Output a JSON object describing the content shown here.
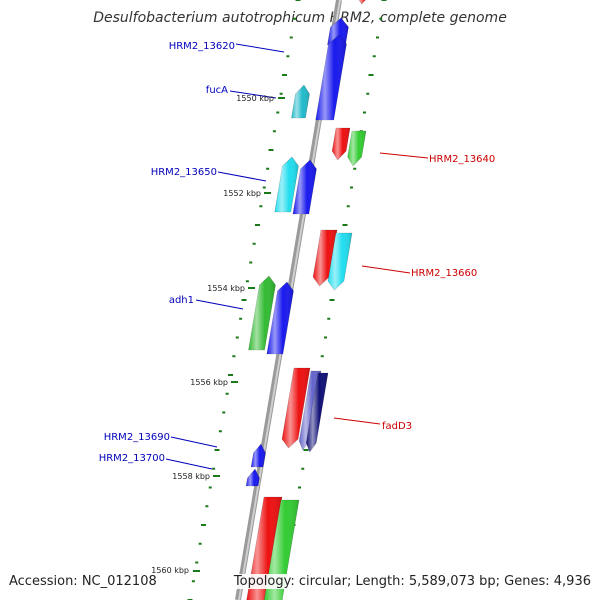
{
  "title": "Desulfobacterium autotrophicum HRM2, complete genome",
  "accession": "Accession: NC_012108",
  "topology": "Topology: circular; Length: 5,589,073 bp; Genes: 4,936",
  "colors": {
    "forward_label": "#0000bb",
    "reverse_label": "#cc0000",
    "tick": "#1a7a1a",
    "backbone": "#888888"
  },
  "ticks": [
    {
      "label": "1550 kbp"
    },
    {
      "label": "1552 kbp"
    },
    {
      "label": "1554 kbp"
    },
    {
      "label": "1556 kbp"
    },
    {
      "label": "1558 kbp"
    },
    {
      "label": "1560 kbp"
    }
  ],
  "gene_labels": [
    {
      "text": "HRM2_13620",
      "strand": "forward"
    },
    {
      "text": "fucA",
      "strand": "forward"
    },
    {
      "text": "HRM2_13640",
      "strand": "reverse"
    },
    {
      "text": "HRM2_13650",
      "strand": "forward"
    },
    {
      "text": "HRM2_13660",
      "strand": "reverse"
    },
    {
      "text": "adh1",
      "strand": "forward"
    },
    {
      "text": "fadD3",
      "strand": "reverse"
    },
    {
      "text": "HRM2_13690",
      "strand": "forward"
    },
    {
      "text": "HRM2_13700",
      "strand": "forward"
    }
  ],
  "genes": [
    {
      "strand": "forward",
      "color": "#1a1aee",
      "name": "gene-forward-top"
    },
    {
      "strand": "forward",
      "color": "#1a1aee",
      "name": "gene-forward-hrm2-13620"
    },
    {
      "strand": "forward",
      "color": "#22bbcc",
      "name": "gene-forward-fuca"
    },
    {
      "strand": "reverse",
      "color": "#ee1111",
      "name": "gene-reverse-top"
    },
    {
      "strand": "reverse",
      "color": "#ee1111",
      "name": "gene-reverse-hrm2-13640-a"
    },
    {
      "strand": "reverse",
      "color": "#33cc33",
      "name": "gene-reverse-hrm2-13640-b"
    },
    {
      "strand": "forward",
      "color": "#22ddee",
      "name": "gene-forward-hrm2-13650-a"
    },
    {
      "strand": "forward",
      "color": "#1a1aee",
      "name": "gene-forward-hrm2-13650-b"
    },
    {
      "strand": "reverse",
      "color": "#ee1111",
      "name": "gene-reverse-hrm2-13660-a"
    },
    {
      "strand": "reverse",
      "color": "#22ddee",
      "name": "gene-reverse-hrm2-13660-b"
    },
    {
      "strand": "forward",
      "color": "#33bb33",
      "name": "gene-forward-adh1-a"
    },
    {
      "strand": "forward",
      "color": "#1a1aee",
      "name": "gene-forward-adh1-b"
    },
    {
      "strand": "reverse",
      "color": "#ee1111",
      "name": "gene-reverse-fadd3-a"
    },
    {
      "strand": "reverse",
      "color": "#6666cc",
      "name": "gene-reverse-fadd3-b"
    },
    {
      "strand": "reverse",
      "color": "#111177",
      "name": "gene-reverse-fadd3-c"
    },
    {
      "strand": "forward",
      "color": "#1a1aee",
      "name": "gene-forward-hrm2-13690"
    },
    {
      "strand": "forward",
      "color": "#1a1aee",
      "name": "gene-forward-hrm2-13700"
    },
    {
      "strand": "reverse",
      "color": "#ee1111",
      "name": "gene-reverse-bottom-a"
    },
    {
      "strand": "reverse",
      "color": "#33cc33",
      "name": "gene-reverse-bottom-b"
    }
  ]
}
